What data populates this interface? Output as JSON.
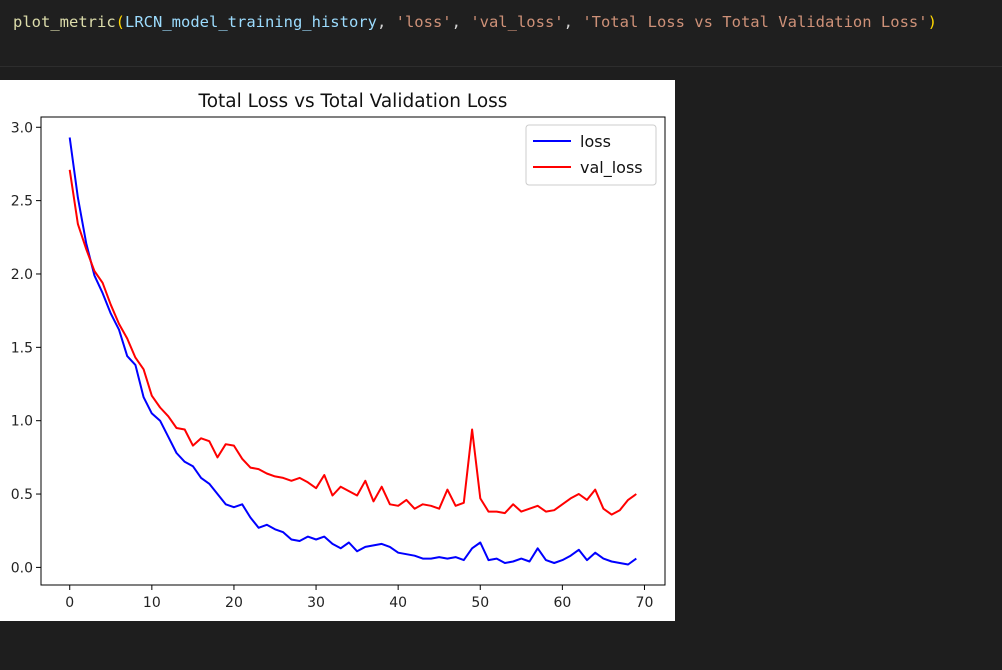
{
  "code": {
    "fn": "plot_metric",
    "arg_var": "LRCN_model_training_history",
    "arg_metric1": "'loss'",
    "arg_metric2": "'val_loss'",
    "arg_title": "'Total Loss vs Total Validation Loss'"
  },
  "colors": {
    "loss": "#0000ff",
    "val_loss": "#ff0000"
  },
  "chart_data": {
    "type": "line",
    "title": "Total Loss vs Total Validation Loss",
    "xlabel": "",
    "ylabel": "",
    "xlim": [
      -3.5,
      72.5
    ],
    "ylim": [
      -0.12,
      3.07
    ],
    "x_ticks": [
      0,
      10,
      20,
      30,
      40,
      50,
      60,
      70
    ],
    "y_ticks": [
      "0.0",
      "0.5",
      "1.0",
      "1.5",
      "2.0",
      "2.5",
      "3.0"
    ],
    "grid": false,
    "legend_position": "top-right",
    "x": [
      0,
      1,
      2,
      3,
      4,
      5,
      6,
      7,
      8,
      9,
      10,
      11,
      12,
      13,
      14,
      15,
      16,
      17,
      18,
      19,
      20,
      21,
      22,
      23,
      24,
      25,
      26,
      27,
      28,
      29,
      30,
      31,
      32,
      33,
      34,
      35,
      36,
      37,
      38,
      39,
      40,
      41,
      42,
      43,
      44,
      45,
      46,
      47,
      48,
      49,
      50,
      51,
      52,
      53,
      54,
      55,
      56,
      57,
      58,
      59,
      60,
      61,
      62,
      63,
      64,
      65,
      66,
      67,
      68,
      69
    ],
    "series": [
      {
        "name": "loss",
        "color": "#0000ff",
        "values": [
          2.93,
          2.52,
          2.21,
          1.99,
          1.87,
          1.73,
          1.62,
          1.44,
          1.38,
          1.16,
          1.05,
          1.0,
          0.89,
          0.78,
          0.72,
          0.69,
          0.61,
          0.57,
          0.5,
          0.43,
          0.41,
          0.43,
          0.34,
          0.27,
          0.29,
          0.26,
          0.24,
          0.19,
          0.18,
          0.21,
          0.19,
          0.21,
          0.16,
          0.13,
          0.17,
          0.11,
          0.14,
          0.15,
          0.16,
          0.14,
          0.1,
          0.09,
          0.08,
          0.06,
          0.06,
          0.07,
          0.06,
          0.07,
          0.05,
          0.13,
          0.17,
          0.05,
          0.06,
          0.03,
          0.04,
          0.06,
          0.04,
          0.13,
          0.05,
          0.03,
          0.05,
          0.08,
          0.12,
          0.05,
          0.1,
          0.06,
          0.04,
          0.03,
          0.02,
          0.06
        ]
      },
      {
        "name": "val_loss",
        "color": "#ff0000",
        "values": [
          2.71,
          2.34,
          2.17,
          2.02,
          1.94,
          1.79,
          1.66,
          1.56,
          1.43,
          1.35,
          1.17,
          1.09,
          1.03,
          0.95,
          0.94,
          0.83,
          0.88,
          0.86,
          0.75,
          0.84,
          0.83,
          0.74,
          0.68,
          0.67,
          0.64,
          0.62,
          0.61,
          0.59,
          0.61,
          0.58,
          0.54,
          0.63,
          0.49,
          0.55,
          0.52,
          0.49,
          0.59,
          0.45,
          0.55,
          0.43,
          0.42,
          0.46,
          0.4,
          0.43,
          0.42,
          0.4,
          0.53,
          0.42,
          0.44,
          0.94,
          0.47,
          0.38,
          0.38,
          0.37,
          0.43,
          0.38,
          0.4,
          0.42,
          0.38,
          0.39,
          0.43,
          0.47,
          0.5,
          0.46,
          0.53,
          0.4,
          0.36,
          0.39,
          0.46,
          0.5
        ]
      }
    ]
  }
}
